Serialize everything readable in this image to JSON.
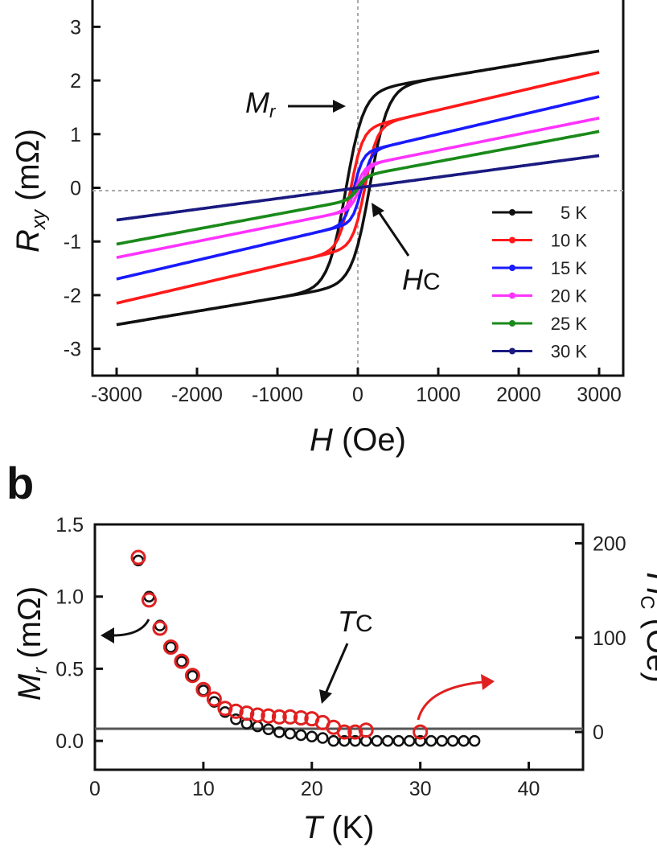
{
  "chart_data": [
    {
      "type": "line",
      "panel": "",
      "xlabel": "H (Oe)",
      "ylabel": "R_xy (mΩ)",
      "xlim": [
        -3300,
        3300
      ],
      "ylim": [
        -3.5,
        3.5
      ],
      "x_ticks": [
        "-3000",
        "-2000",
        "-1000",
        "0",
        "1000",
        "2000",
        "3000"
      ],
      "y_ticks": [
        "3",
        "2",
        "1",
        "0",
        "-1",
        "-2",
        "-3"
      ],
      "series": [
        {
          "name": "5 K",
          "color": "#111111",
          "sat": 2.55,
          "rem": 1.55,
          "hc": 150,
          "slope": 0.00025
        },
        {
          "name": "10 K",
          "color": "#ff1a1a",
          "sat": 2.15,
          "rem": 1.0,
          "hc": 90,
          "slope": 0.00035
        },
        {
          "name": "15 K",
          "color": "#1a1aff",
          "sat": 1.7,
          "rem": 0.5,
          "hc": 50,
          "slope": 0.00035
        },
        {
          "name": "20 K",
          "color": "#ff33ff",
          "sat": 1.3,
          "rem": 0.25,
          "hc": 25,
          "slope": 0.0003
        },
        {
          "name": "25 K",
          "color": "#1a8a1a",
          "sat": 1.05,
          "rem": 0.1,
          "hc": 10,
          "slope": 0.00028
        },
        {
          "name": "30 K",
          "color": "#1a1a80",
          "sat": 0.6,
          "rem": 0.0,
          "hc": 0,
          "slope": 0.00018
        }
      ],
      "annotations": {
        "mr": "M",
        "mr_sub": "r",
        "hc": "H",
        "hc_sub": "C"
      }
    },
    {
      "type": "scatter",
      "panel": "b",
      "xlabel": "T (K)",
      "ylabel": "M_r (mΩ)",
      "xlim": [
        0,
        45
      ],
      "ylim": [
        -0.2,
        1.5
      ],
      "y2lim": [
        -40,
        220
      ],
      "x_ticks": [
        "0",
        "10",
        "20",
        "30",
        "40"
      ],
      "y_ticks": [
        "1.5",
        "1.0",
        "0.5",
        "0.0"
      ],
      "y2_ticks": [
        "200",
        "100",
        "0"
      ],
      "y2label": "H_C (Oe)",
      "mr_series": {
        "x": [
          4,
          5,
          6,
          7,
          8,
          9,
          10,
          11,
          12,
          13,
          14,
          15,
          16,
          17,
          18,
          19,
          20,
          21,
          22,
          23,
          24,
          25,
          26,
          27,
          28,
          29,
          30,
          31,
          32,
          33,
          34,
          35
        ],
        "y": [
          1.25,
          1.0,
          0.8,
          0.65,
          0.55,
          0.45,
          0.35,
          0.27,
          0.2,
          0.15,
          0.12,
          0.1,
          0.08,
          0.06,
          0.05,
          0.04,
          0.03,
          0.02,
          0.0,
          0.0,
          0.0,
          0.0,
          0.0,
          0.0,
          0.0,
          0.0,
          0.0,
          0.0,
          0.0,
          0.0,
          0.0,
          0.0
        ],
        "color": "#111111"
      },
      "hc_series": {
        "x": [
          4,
          5,
          6,
          7,
          8,
          9,
          10,
          11,
          12,
          13,
          14,
          15,
          16,
          17,
          18,
          19,
          20,
          21,
          22,
          23,
          24,
          25,
          30
        ],
        "y": [
          185,
          140,
          110,
          90,
          75,
          60,
          45,
          35,
          25,
          22,
          20,
          18,
          17,
          16,
          16,
          15,
          14,
          10,
          5,
          0,
          0,
          2,
          0
        ],
        "color": "#e02020"
      },
      "annotations": {
        "tc": "T",
        "tc_sub": "C"
      }
    }
  ],
  "labels": {
    "panel_b": "b",
    "top_xlabel_italic": "H",
    "top_xlabel_unit": " (Oe)",
    "top_ylabel_main": "R",
    "top_ylabel_sub": "xy",
    "top_ylabel_unit": " (mΩ)",
    "bot_xlabel_italic": "T",
    "bot_xlabel_unit": " (K)",
    "bot_ylabel_main": "M",
    "bot_ylabel_sub": "r",
    "bot_ylabel_unit": " (mΩ)",
    "bot_y2label_main": "H",
    "bot_y2label_sub": "C",
    "bot_y2label_unit": " (Oe)"
  }
}
